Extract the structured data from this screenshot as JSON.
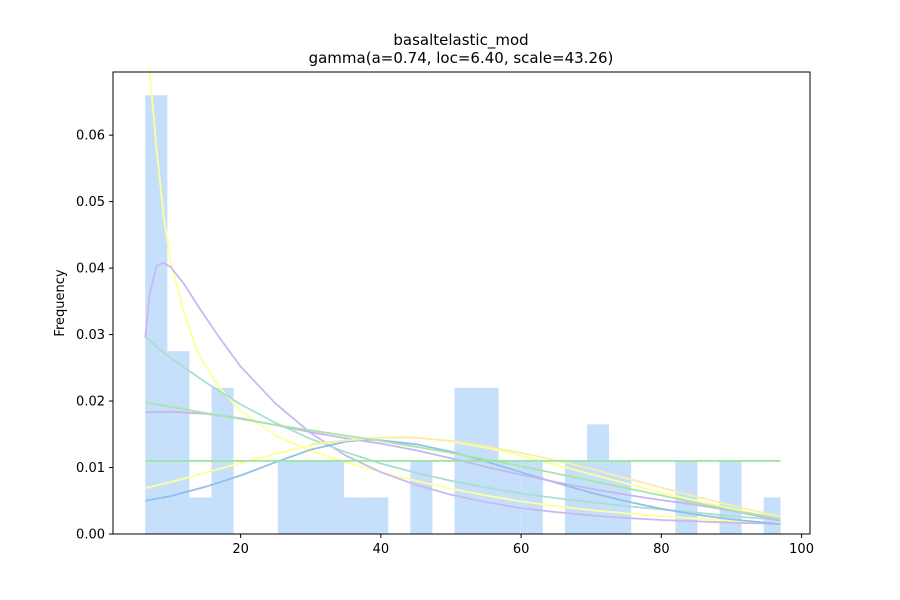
{
  "chart_data": {
    "type": "bar",
    "title": "basaltelastic_mod",
    "subtitle": "gamma(a=0.74, loc=6.40, scale=43.26)",
    "xlabel": "",
    "ylabel": "Frequency",
    "xlim": [
      1.8,
      101.2
    ],
    "ylim": [
      0,
      0.0695
    ],
    "x_ticks": [
      20,
      40,
      60,
      80,
      100
    ],
    "y_ticks": [
      0.0,
      0.01,
      0.02,
      0.03,
      0.04,
      0.05,
      0.06
    ],
    "y_tick_labels": [
      "0.00",
      "0.01",
      "0.02",
      "0.03",
      "0.04",
      "0.05",
      "0.06"
    ],
    "grid": false,
    "bar_color": "#c6e0fb",
    "histogram": {
      "bins": [
        {
          "x0": 6.4,
          "x1": 9.55,
          "value": 0.066
        },
        {
          "x0": 9.55,
          "x1": 12.7,
          "value": 0.0275
        },
        {
          "x0": 12.7,
          "x1": 15.85,
          "value": 0.0055
        },
        {
          "x0": 15.85,
          "x1": 19.0,
          "value": 0.022
        },
        {
          "x0": 19.0,
          "x1": 22.15,
          "value": 0.0
        },
        {
          "x0": 22.15,
          "x1": 25.3,
          "value": 0.0
        },
        {
          "x0": 25.3,
          "x1": 28.45,
          "value": 0.011
        },
        {
          "x0": 28.45,
          "x1": 31.6,
          "value": 0.011
        },
        {
          "x0": 31.6,
          "x1": 34.75,
          "value": 0.011
        },
        {
          "x0": 34.75,
          "x1": 37.9,
          "value": 0.0055
        },
        {
          "x0": 37.9,
          "x1": 41.05,
          "value": 0.0055
        },
        {
          "x0": 41.05,
          "x1": 44.2,
          "value": 0.0
        },
        {
          "x0": 44.2,
          "x1": 47.35,
          "value": 0.011
        },
        {
          "x0": 47.35,
          "x1": 50.5,
          "value": 0.0
        },
        {
          "x0": 50.5,
          "x1": 53.65,
          "value": 0.022
        },
        {
          "x0": 53.65,
          "x1": 56.8,
          "value": 0.022
        },
        {
          "x0": 56.8,
          "x1": 59.95,
          "value": 0.011
        },
        {
          "x0": 59.95,
          "x1": 63.1,
          "value": 0.011
        },
        {
          "x0": 63.1,
          "x1": 66.25,
          "value": 0.0
        },
        {
          "x0": 66.25,
          "x1": 69.4,
          "value": 0.011
        },
        {
          "x0": 69.4,
          "x1": 72.55,
          "value": 0.0165
        },
        {
          "x0": 72.55,
          "x1": 75.7,
          "value": 0.011
        },
        {
          "x0": 75.7,
          "x1": 78.85,
          "value": 0.0
        },
        {
          "x0": 78.85,
          "x1": 82.0,
          "value": 0.0
        },
        {
          "x0": 82.0,
          "x1": 85.15,
          "value": 0.011
        },
        {
          "x0": 85.15,
          "x1": 88.3,
          "value": 0.0
        },
        {
          "x0": 88.3,
          "x1": 91.45,
          "value": 0.011
        },
        {
          "x0": 91.45,
          "x1": 94.6,
          "value": 0.0
        },
        {
          "x0": 94.6,
          "x1": 97.0,
          "value": 0.0055
        }
      ]
    },
    "series": [
      {
        "color": "#ffff99",
        "type": "line",
        "points": [
          [
            7.0,
            0.07
          ],
          [
            8,
            0.058
          ],
          [
            9,
            0.048
          ],
          [
            10,
            0.041
          ],
          [
            12,
            0.033
          ],
          [
            14,
            0.027
          ],
          [
            17,
            0.022
          ],
          [
            20,
            0.0185
          ],
          [
            25,
            0.0148
          ],
          [
            30,
            0.0125
          ],
          [
            35,
            0.0108
          ],
          [
            40,
            0.0093
          ],
          [
            45,
            0.008
          ],
          [
            50,
            0.0068
          ],
          [
            55,
            0.0058
          ],
          [
            60,
            0.0049
          ],
          [
            65,
            0.0042
          ],
          [
            70,
            0.0036
          ],
          [
            75,
            0.0031
          ],
          [
            80,
            0.0027
          ],
          [
            85,
            0.0023
          ],
          [
            90,
            0.002
          ],
          [
            97,
            0.0016
          ]
        ]
      },
      {
        "color": "#cbb8f0",
        "type": "line",
        "points": [
          [
            6.4,
            0.0295
          ],
          [
            7,
            0.036
          ],
          [
            8,
            0.0403
          ],
          [
            9,
            0.0408
          ],
          [
            10,
            0.0402
          ],
          [
            12,
            0.0375
          ],
          [
            14,
            0.0342
          ],
          [
            17,
            0.0295
          ],
          [
            20,
            0.0252
          ],
          [
            25,
            0.0196
          ],
          [
            30,
            0.0152
          ],
          [
            35,
            0.0118
          ],
          [
            40,
            0.0093
          ],
          [
            45,
            0.0074
          ],
          [
            50,
            0.0059
          ],
          [
            55,
            0.0048
          ],
          [
            60,
            0.0039
          ],
          [
            65,
            0.0033
          ],
          [
            70,
            0.0028
          ],
          [
            75,
            0.0024
          ],
          [
            80,
            0.0021
          ],
          [
            85,
            0.0019
          ],
          [
            90,
            0.0017
          ],
          [
            97,
            0.0015
          ]
        ]
      },
      {
        "color": "#a8dfd0",
        "type": "line",
        "points": [
          [
            6.4,
            0.0296
          ],
          [
            10,
            0.0265
          ],
          [
            15,
            0.0228
          ],
          [
            20,
            0.0195
          ],
          [
            25,
            0.0167
          ],
          [
            30,
            0.0143
          ],
          [
            35,
            0.0123
          ],
          [
            40,
            0.0106
          ],
          [
            45,
            0.0092
          ],
          [
            50,
            0.008
          ],
          [
            55,
            0.007
          ],
          [
            60,
            0.0061
          ],
          [
            65,
            0.0054
          ],
          [
            70,
            0.0048
          ],
          [
            75,
            0.0042
          ],
          [
            80,
            0.0037
          ],
          [
            85,
            0.0032
          ],
          [
            90,
            0.0027
          ],
          [
            97,
            0.0021
          ]
        ]
      },
      {
        "color": "#90c0ee",
        "type": "line",
        "points": [
          [
            6.4,
            0.005
          ],
          [
            10,
            0.0057
          ],
          [
            15,
            0.0071
          ],
          [
            20,
            0.0088
          ],
          [
            25,
            0.0108
          ],
          [
            30,
            0.0127
          ],
          [
            35,
            0.0139
          ],
          [
            38,
            0.0142
          ],
          [
            40,
            0.0141
          ],
          [
            45,
            0.0135
          ],
          [
            50,
            0.0124
          ],
          [
            55,
            0.0109
          ],
          [
            60,
            0.0093
          ],
          [
            65,
            0.0077
          ],
          [
            70,
            0.0062
          ],
          [
            75,
            0.0049
          ],
          [
            80,
            0.0038
          ],
          [
            85,
            0.0029
          ],
          [
            90,
            0.0022
          ],
          [
            97,
            0.0015
          ]
        ]
      },
      {
        "color": "#c7b5ee",
        "type": "line",
        "points": [
          [
            6.4,
            0.0183
          ],
          [
            10,
            0.0184
          ],
          [
            15,
            0.0181
          ],
          [
            20,
            0.0174
          ],
          [
            25,
            0.0164
          ],
          [
            30,
            0.0153
          ],
          [
            35,
            0.0144
          ],
          [
            40,
            0.0136
          ],
          [
            45,
            0.0126
          ],
          [
            50,
            0.0114
          ],
          [
            55,
            0.0101
          ],
          [
            60,
            0.0089
          ],
          [
            65,
            0.0078
          ],
          [
            70,
            0.0068
          ],
          [
            75,
            0.0059
          ],
          [
            80,
            0.0051
          ],
          [
            85,
            0.0044
          ],
          [
            90,
            0.0035
          ],
          [
            97,
            0.002
          ]
        ]
      },
      {
        "color": "#ffff99",
        "type": "line",
        "points": [
          [
            6.4,
            0.0069
          ],
          [
            10,
            0.0078
          ],
          [
            15,
            0.0092
          ],
          [
            20,
            0.0107
          ],
          [
            25,
            0.0121
          ],
          [
            30,
            0.0133
          ],
          [
            35,
            0.0141
          ],
          [
            40,
            0.0145
          ],
          [
            43,
            0.0146
          ],
          [
            45,
            0.0145
          ],
          [
            50,
            0.0139
          ],
          [
            55,
            0.013
          ],
          [
            60,
            0.0118
          ],
          [
            65,
            0.0104
          ],
          [
            70,
            0.009
          ],
          [
            75,
            0.0076
          ],
          [
            80,
            0.0062
          ],
          [
            85,
            0.005
          ],
          [
            90,
            0.0038
          ],
          [
            97,
            0.0023
          ]
        ]
      },
      {
        "color": "#f8ecb0",
        "type": "line",
        "points": [
          [
            30,
            0.0135
          ],
          [
            35,
            0.0141
          ],
          [
            40,
            0.0145
          ],
          [
            45,
            0.0145
          ],
          [
            50,
            0.014
          ],
          [
            55,
            0.0132
          ],
          [
            60,
            0.0122
          ],
          [
            65,
            0.0111
          ],
          [
            70,
            0.0098
          ],
          [
            75,
            0.0084
          ],
          [
            80,
            0.007
          ],
          [
            85,
            0.0056
          ],
          [
            90,
            0.0043
          ],
          [
            97,
            0.0026
          ]
        ]
      },
      {
        "color": "#a8e6a8",
        "type": "line",
        "points": [
          [
            6.4,
            0.0198
          ],
          [
            15,
            0.0182
          ],
          [
            20,
            0.0173
          ],
          [
            25,
            0.0164
          ],
          [
            30,
            0.0156
          ],
          [
            35,
            0.0148
          ],
          [
            40,
            0.014
          ],
          [
            45,
            0.0131
          ],
          [
            50,
            0.0122
          ],
          [
            55,
            0.0112
          ],
          [
            60,
            0.0102
          ],
          [
            65,
            0.0091
          ],
          [
            70,
            0.008
          ],
          [
            75,
            0.0069
          ],
          [
            80,
            0.0058
          ],
          [
            85,
            0.0047
          ],
          [
            90,
            0.0036
          ],
          [
            97,
            0.0023
          ]
        ]
      },
      {
        "color": "#99e699",
        "type": "line",
        "points": [
          [
            6.4,
            0.011
          ],
          [
            97,
            0.011
          ]
        ]
      }
    ]
  }
}
